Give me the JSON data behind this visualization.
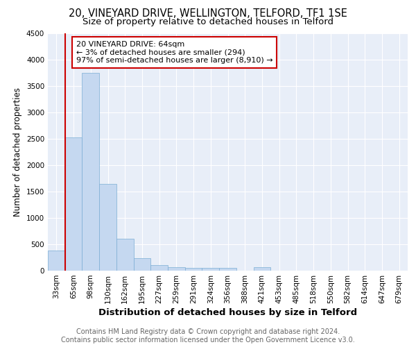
{
  "title1": "20, VINEYARD DRIVE, WELLINGTON, TELFORD, TF1 1SE",
  "title2": "Size of property relative to detached houses in Telford",
  "xlabel": "Distribution of detached houses by size in Telford",
  "ylabel": "Number of detached properties",
  "categories": [
    "33sqm",
    "65sqm",
    "98sqm",
    "130sqm",
    "162sqm",
    "195sqm",
    "227sqm",
    "259sqm",
    "291sqm",
    "324sqm",
    "356sqm",
    "388sqm",
    "421sqm",
    "453sqm",
    "485sqm",
    "518sqm",
    "550sqm",
    "582sqm",
    "614sqm",
    "647sqm",
    "679sqm"
  ],
  "values": [
    380,
    2520,
    3750,
    1640,
    600,
    240,
    105,
    65,
    50,
    50,
    50,
    0,
    65,
    0,
    0,
    0,
    0,
    0,
    0,
    0,
    0
  ],
  "bar_color": "#c5d8f0",
  "bar_edge_color": "#7badd4",
  "vline_x_index": 1,
  "annotation_text": "20 VINEYARD DRIVE: 64sqm\n← 3% of detached houses are smaller (294)\n97% of semi-detached houses are larger (8,910) →",
  "box_facecolor": "#ffffff",
  "box_edgecolor": "#cc0000",
  "ylim": [
    0,
    4500
  ],
  "yticks": [
    0,
    500,
    1000,
    1500,
    2000,
    2500,
    3000,
    3500,
    4000,
    4500
  ],
  "background_color": "#e8eef8",
  "grid_color": "#ffffff",
  "footer_text": "Contains HM Land Registry data © Crown copyright and database right 2024.\nContains public sector information licensed under the Open Government Licence v3.0.",
  "title1_fontsize": 10.5,
  "title2_fontsize": 9.5,
  "ylabel_fontsize": 8.5,
  "xlabel_fontsize": 9.5,
  "tick_fontsize": 7.5,
  "annotation_fontsize": 8,
  "footer_fontsize": 7
}
